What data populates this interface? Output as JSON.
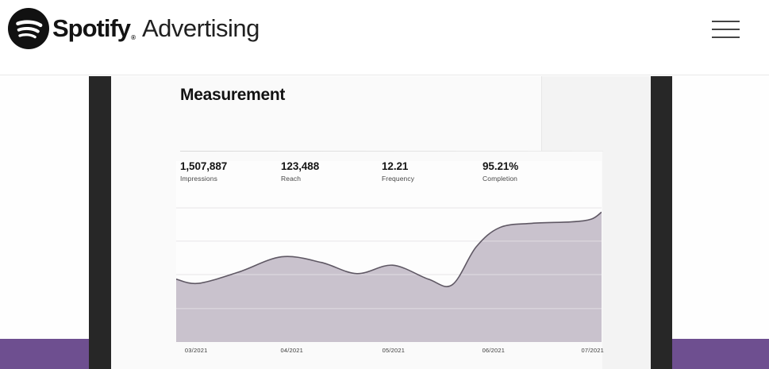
{
  "header": {
    "brand_primary": "Spotify",
    "brand_registered": "®",
    "brand_secondary": "Advertising",
    "menu_icon": "hamburger-icon",
    "logo_icon": "spotify-logo-icon"
  },
  "dashboard": {
    "title": "Measurement",
    "metrics": [
      {
        "value": "1,507,887",
        "label": "Impressions"
      },
      {
        "value": "123,488",
        "label": "Reach"
      },
      {
        "value": "12.21",
        "label": "Frequency"
      },
      {
        "value": "95.21%",
        "label": "Completion"
      }
    ]
  },
  "chart_data": {
    "type": "area",
    "title": "",
    "xlabel": "",
    "ylabel": "",
    "legend": "none",
    "grid": "horizontal",
    "y_axis": "unlabeled",
    "x_tick_labels": [
      "03/2021",
      "04/2021",
      "05/2021",
      "06/2021",
      "07/2021"
    ],
    "x_tick_positions": [
      0.047,
      0.272,
      0.511,
      0.746,
      0.979
    ],
    "gridline_positions_from_top": [
      0.04,
      0.278,
      0.517,
      0.761
    ],
    "points": [
      {
        "x": 0.0,
        "y": 0.45
      },
      {
        "x": 0.052,
        "y": 0.42
      },
      {
        "x": 0.146,
        "y": 0.5
      },
      {
        "x": 0.248,
        "y": 0.61
      },
      {
        "x": 0.341,
        "y": 0.57
      },
      {
        "x": 0.425,
        "y": 0.49
      },
      {
        "x": 0.509,
        "y": 0.55
      },
      {
        "x": 0.593,
        "y": 0.45
      },
      {
        "x": 0.649,
        "y": 0.41
      },
      {
        "x": 0.705,
        "y": 0.68
      },
      {
        "x": 0.761,
        "y": 0.82
      },
      {
        "x": 0.836,
        "y": 0.85
      },
      {
        "x": 0.929,
        "y": 0.86
      },
      {
        "x": 0.976,
        "y": 0.88
      },
      {
        "x": 1.0,
        "y": 0.93
      }
    ],
    "note": "y values are relative fill heights 0-1; no y-axis labels are visible in the chart",
    "fill_color": "#c9c2cd",
    "line_color": "#5f5864",
    "gridline_color": "#e7e5e8"
  },
  "colors": {
    "purple_band": "#6e4f90",
    "device_frame": "#272727",
    "screen_background": "#fafafa",
    "header_background": "#ffffff"
  }
}
